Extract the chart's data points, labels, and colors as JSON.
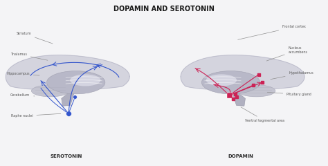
{
  "title": "DOPAMIN AND SEROTONIN",
  "title_fontsize": 7,
  "background_color": "#f4f4f6",
  "blue_color": "#3355cc",
  "pink_color": "#cc2255",
  "label_color": "#555555",
  "label_fontsize": 3.5,
  "serotonin_label": "SEROTONIN",
  "dopamin_label": "DOPAMIN"
}
